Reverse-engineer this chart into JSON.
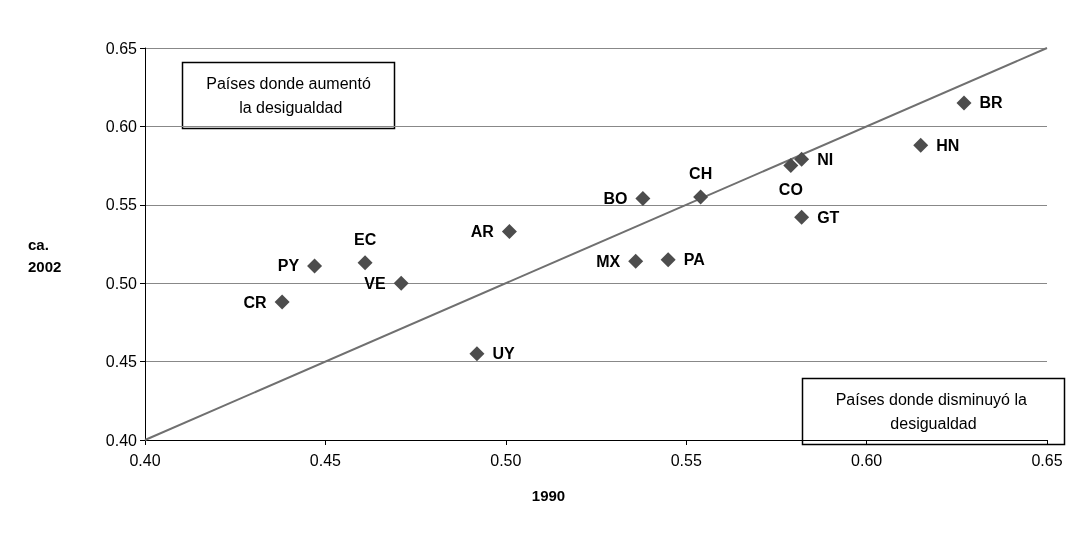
{
  "chart_data": {
    "type": "scatter",
    "xlabel": "1990",
    "ylabel": "ca. 2002",
    "xlim": [
      0.4,
      0.65
    ],
    "ylim": [
      0.4,
      0.65
    ],
    "xticks": [
      {
        "value": 0.4,
        "label": "0.40"
      },
      {
        "value": 0.45,
        "label": "0.45"
      },
      {
        "value": 0.5,
        "label": "0.50"
      },
      {
        "value": 0.55,
        "label": "0.55"
      },
      {
        "value": 0.6,
        "label": "0.60"
      },
      {
        "value": 0.65,
        "label": "0.65"
      }
    ],
    "yticks": [
      {
        "value": 0.4,
        "label": "0.40"
      },
      {
        "value": 0.45,
        "label": "0.45"
      },
      {
        "value": 0.5,
        "label": "0.50"
      },
      {
        "value": 0.55,
        "label": "0.55"
      },
      {
        "value": 0.6,
        "label": "0.60"
      },
      {
        "value": 0.65,
        "label": "0.65"
      }
    ],
    "grid": "y",
    "marker": "diamond",
    "annotations": [
      "Países donde aumentó la desigualdad",
      "Países donde disminuyó la desigualdad"
    ],
    "series": [
      {
        "color": "#4d4d4d",
        "x": [
          0.438,
          0.447,
          0.461,
          0.471,
          0.492,
          0.501,
          0.536,
          0.538,
          0.545,
          0.554,
          0.579,
          0.582,
          0.582,
          0.615,
          0.627
        ],
        "values": [
          0.488,
          0.511,
          0.513,
          0.5,
          0.455,
          0.533,
          0.514,
          0.554,
          0.515,
          0.555,
          0.575,
          0.579,
          0.542,
          0.588,
          0.615
        ],
        "value_labels": [
          "CR",
          "PY",
          "EC",
          "VE",
          "UY",
          "AR",
          "MX",
          "BO",
          "PA",
          "CH",
          "CO",
          "NI",
          "GT",
          "HN",
          "BR"
        ]
      },
      {
        "type": "line",
        "color": "#707070",
        "x": [
          0.4,
          0.65
        ],
        "values": [
          0.4,
          0.65
        ],
        "marker": "none"
      }
    ]
  }
}
